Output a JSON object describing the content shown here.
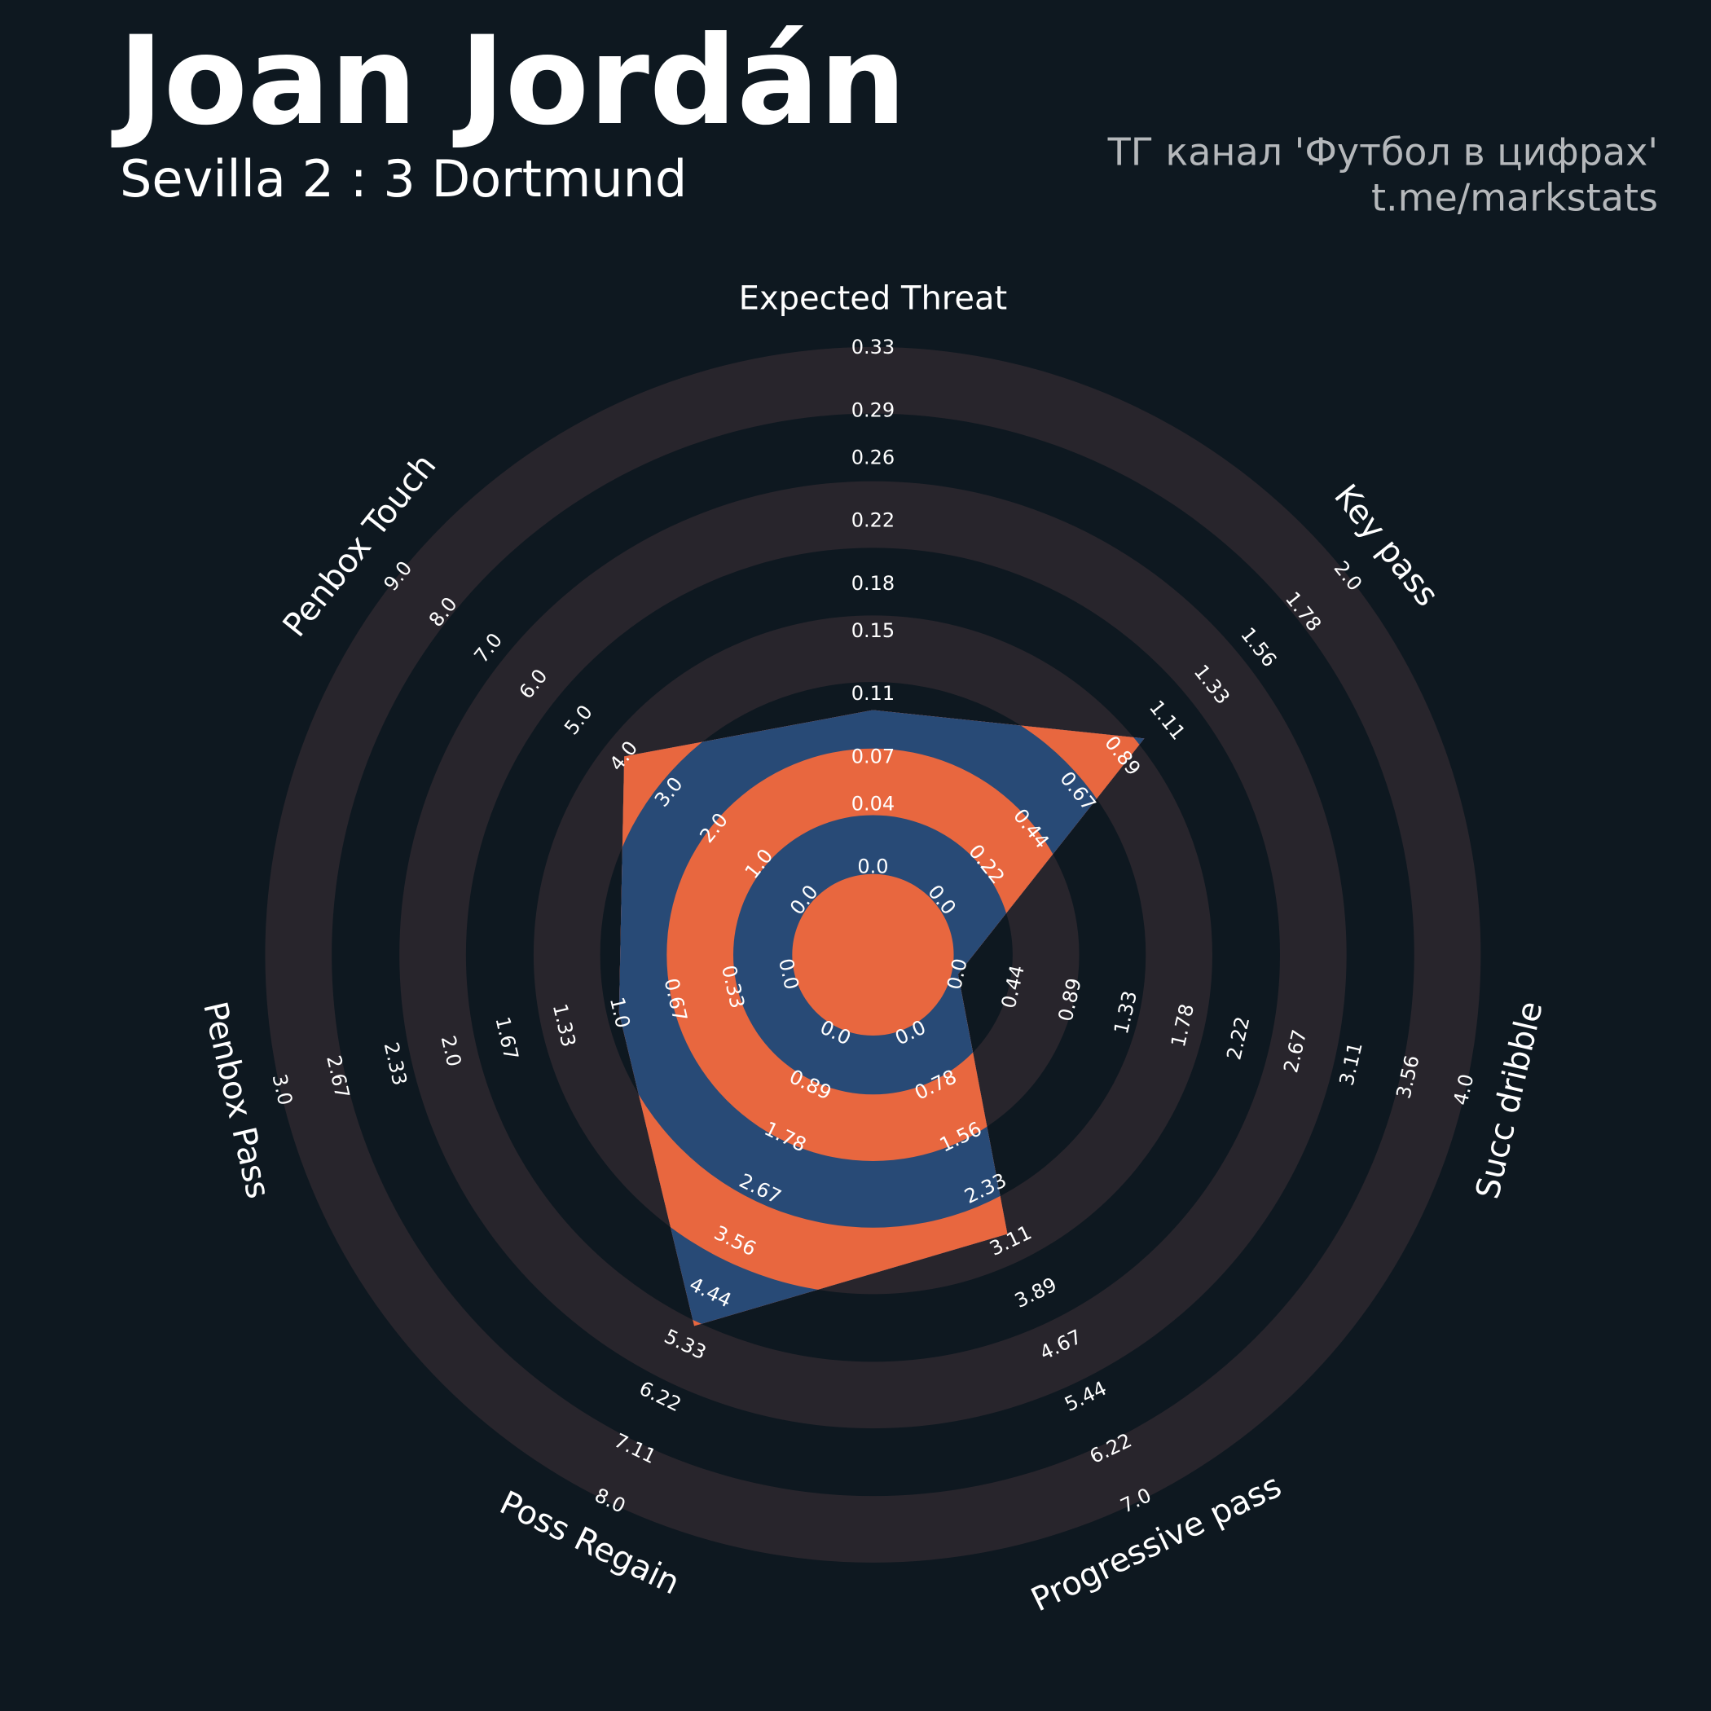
{
  "title": "Joan Jordán",
  "subtitle": "Sevilla 2 : 3 Dortmund",
  "credits": [
    "ТГ канал 'Футбол в цифрах'",
    "t.me/markstats"
  ],
  "chart_data": {
    "type": "radar",
    "params": [
      "Expected Threat",
      "Key pass",
      "Succ dribble",
      "Progressive pass",
      "Poss Regain",
      "Penbox Pass",
      "Penbox Touch"
    ],
    "values": [
      0.1,
      1,
      0,
      3,
      5,
      1,
      4
    ],
    "lims": [
      [
        0,
        0.33
      ],
      [
        0,
        2
      ],
      [
        0,
        4
      ],
      [
        0,
        7
      ],
      [
        0,
        8
      ],
      [
        0,
        3
      ],
      [
        0,
        9
      ]
    ],
    "ticks": [
      [
        {
          "value": 0,
          "label": "0.0"
        },
        0.04,
        0.07,
        0.11,
        0.15,
        0.18,
        0.22,
        0.26,
        0.29,
        0.33
      ],
      [
        {
          "value": 0,
          "label": "0.0"
        },
        0.22,
        0.44,
        0.67,
        0.89,
        1.11,
        1.33,
        1.56,
        1.78,
        {
          "value": 2,
          "label": "2.0"
        }
      ],
      [
        {
          "value": 0,
          "label": "0.0"
        },
        0.44,
        0.89,
        1.33,
        1.78,
        2.22,
        2.67,
        3.11,
        3.56,
        {
          "value": 4,
          "label": "4.0"
        }
      ],
      [
        {
          "value": 0,
          "label": "0.0"
        },
        0.78,
        1.56,
        2.33,
        3.11,
        3.89,
        4.67,
        5.44,
        6.22,
        {
          "value": 7,
          "label": "7.0"
        }
      ],
      [
        {
          "value": 0,
          "label": "0.0"
        },
        0.89,
        1.78,
        2.67,
        3.56,
        4.44,
        5.33,
        6.22,
        7.11,
        {
          "value": 8,
          "label": "8.0"
        }
      ],
      [
        {
          "value": 0,
          "label": "0.0"
        },
        0.33,
        0.67,
        {
          "value": 1,
          "label": "1.0"
        },
        1.33,
        1.67,
        {
          "value": 2,
          "label": "2.0"
        },
        2.33,
        2.67,
        {
          "value": 3,
          "label": "3.0"
        }
      ],
      [
        {
          "value": 0,
          "label": "0.0"
        },
        {
          "value": 1,
          "label": "1.0"
        },
        {
          "value": 2,
          "label": "2.0"
        },
        {
          "value": 3,
          "label": "3.0"
        },
        {
          "value": 4,
          "label": "4.0"
        },
        {
          "value": 5,
          "label": "5.0"
        },
        {
          "value": 6,
          "label": "6.0"
        },
        {
          "value": 7,
          "label": "7.0"
        },
        {
          "value": 8,
          "label": "8.0"
        },
        {
          "value": 9,
          "label": "9.0"
        }
      ]
    ],
    "color": "#284a76",
    "ring_color": "#e8673f"
  }
}
